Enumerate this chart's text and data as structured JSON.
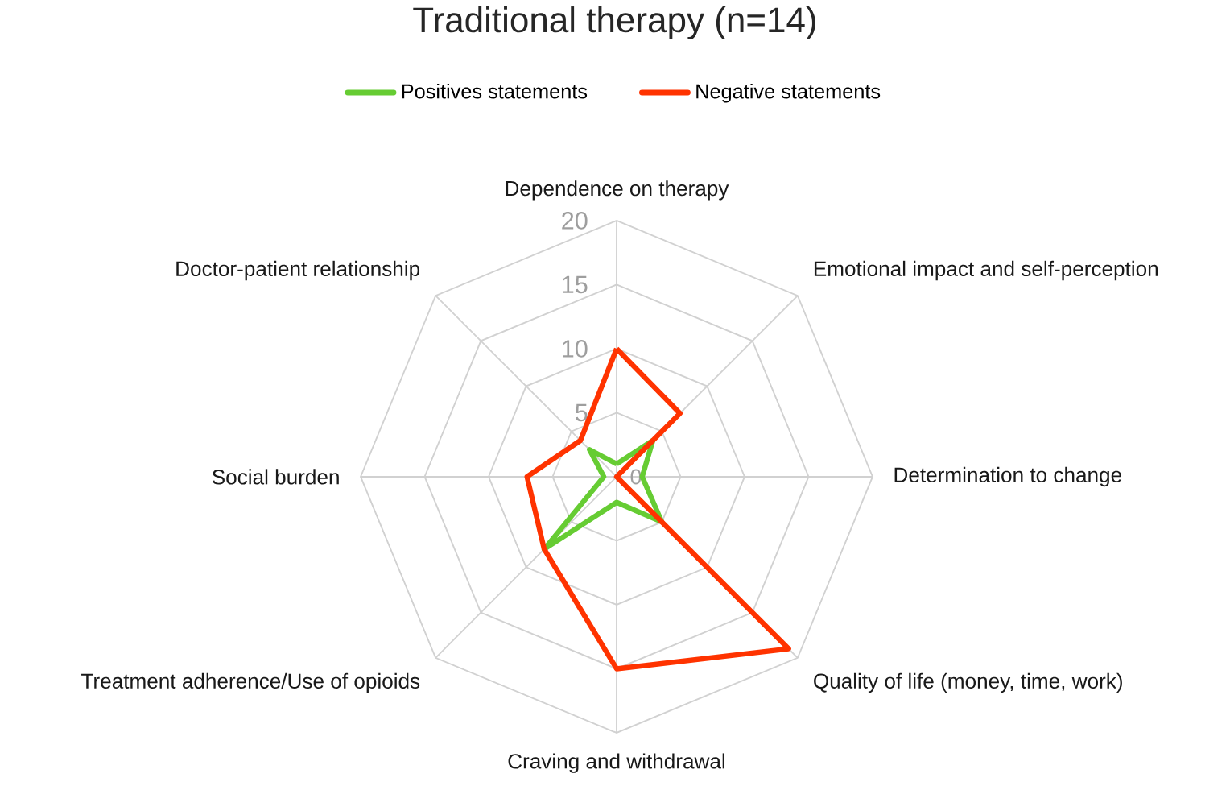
{
  "chart_data": {
    "type": "radar",
    "title": "Traditional therapy (n=14)",
    "categories": [
      "Dependence on therapy",
      "Emotional impact and self-perception",
      "Determination to change",
      "Quality of life (money, time, work)",
      "Craving and withdrawal",
      "Treatment adherence/Use of opioids",
      "Social burden",
      "Doctor-patient relationship"
    ],
    "series": [
      {
        "name": "Positives statements",
        "color": "#66cc33",
        "values": [
          1,
          4,
          2,
          5,
          2,
          8,
          1,
          3
        ]
      },
      {
        "name": "Negative statements",
        "color": "#ff3300",
        "values": [
          10,
          7,
          0,
          19,
          15,
          8,
          7,
          4
        ]
      }
    ],
    "ylim": [
      0,
      20
    ],
    "yticks": [
      0,
      5,
      10,
      15,
      20
    ],
    "grid": true,
    "legend": "top"
  }
}
